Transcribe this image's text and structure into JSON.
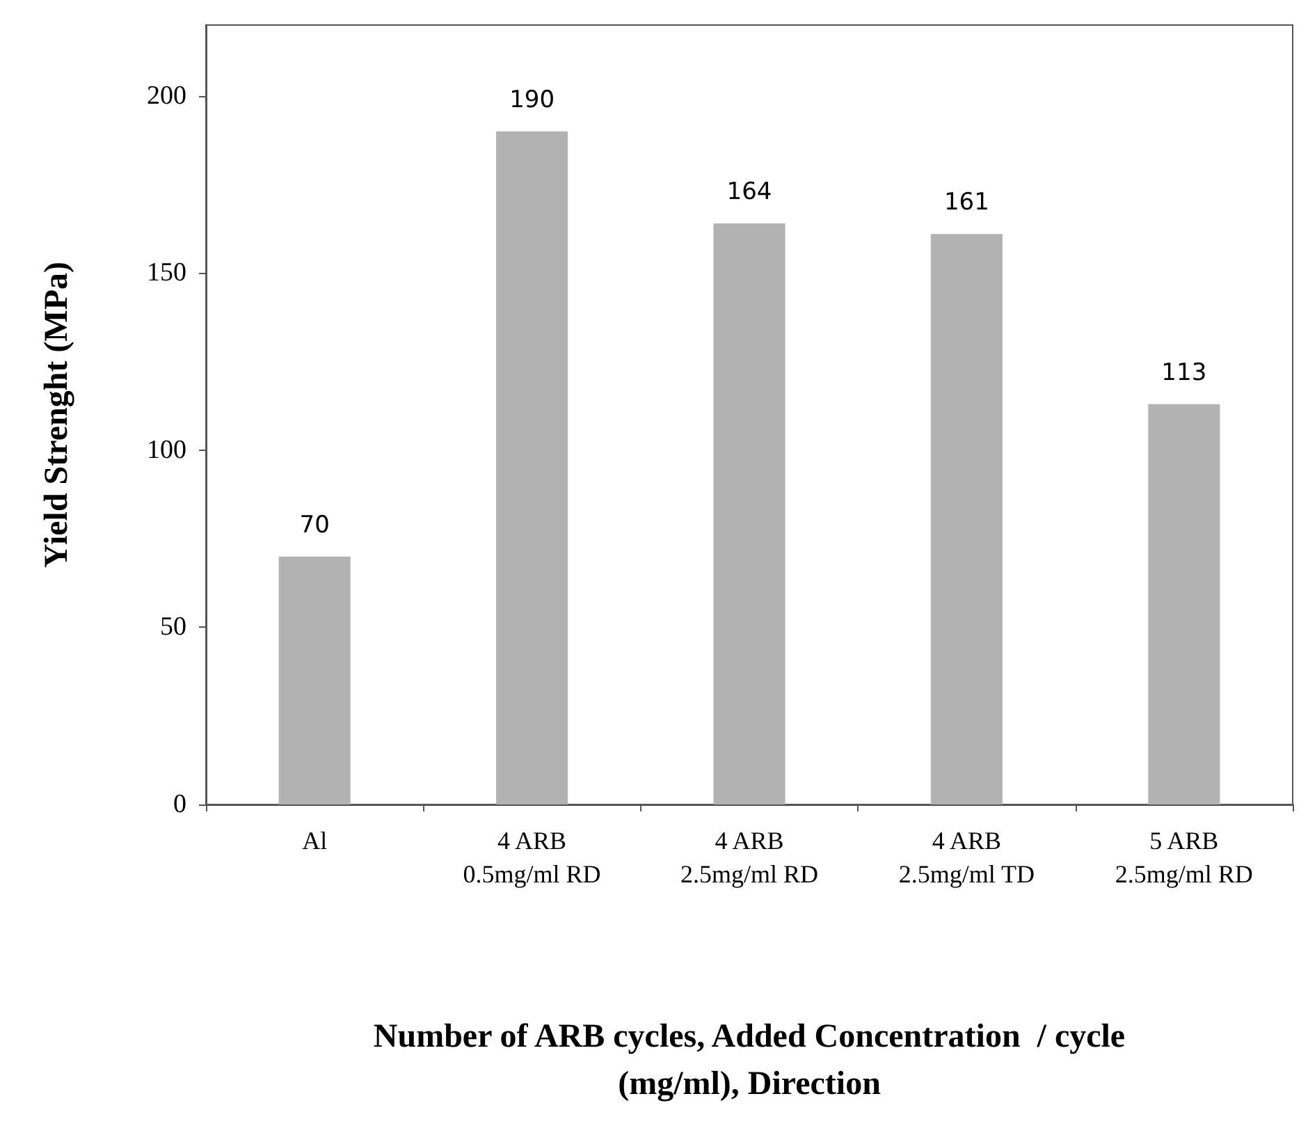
{
  "chart_data": {
    "type": "bar",
    "xlabel": "Number of ARB cycles, Added Concentration  / cycle\n(mg/ml), Direction",
    "ylabel": "Yield Strenght (MPa)",
    "categories": [
      "Al",
      "4 ARB\n0.5mg/ml RD",
      "4 ARB\n2.5mg/ml RD",
      "4 ARB\n2.5mg/ml TD",
      "5 ARB\n2.5mg/ml RD"
    ],
    "values": [
      70,
      190,
      164,
      161,
      113
    ],
    "color": "#b2b2b2",
    "ylim": [
      0,
      220
    ],
    "yticks": [
      0,
      50,
      100,
      150,
      200
    ],
    "data_labels": true
  }
}
